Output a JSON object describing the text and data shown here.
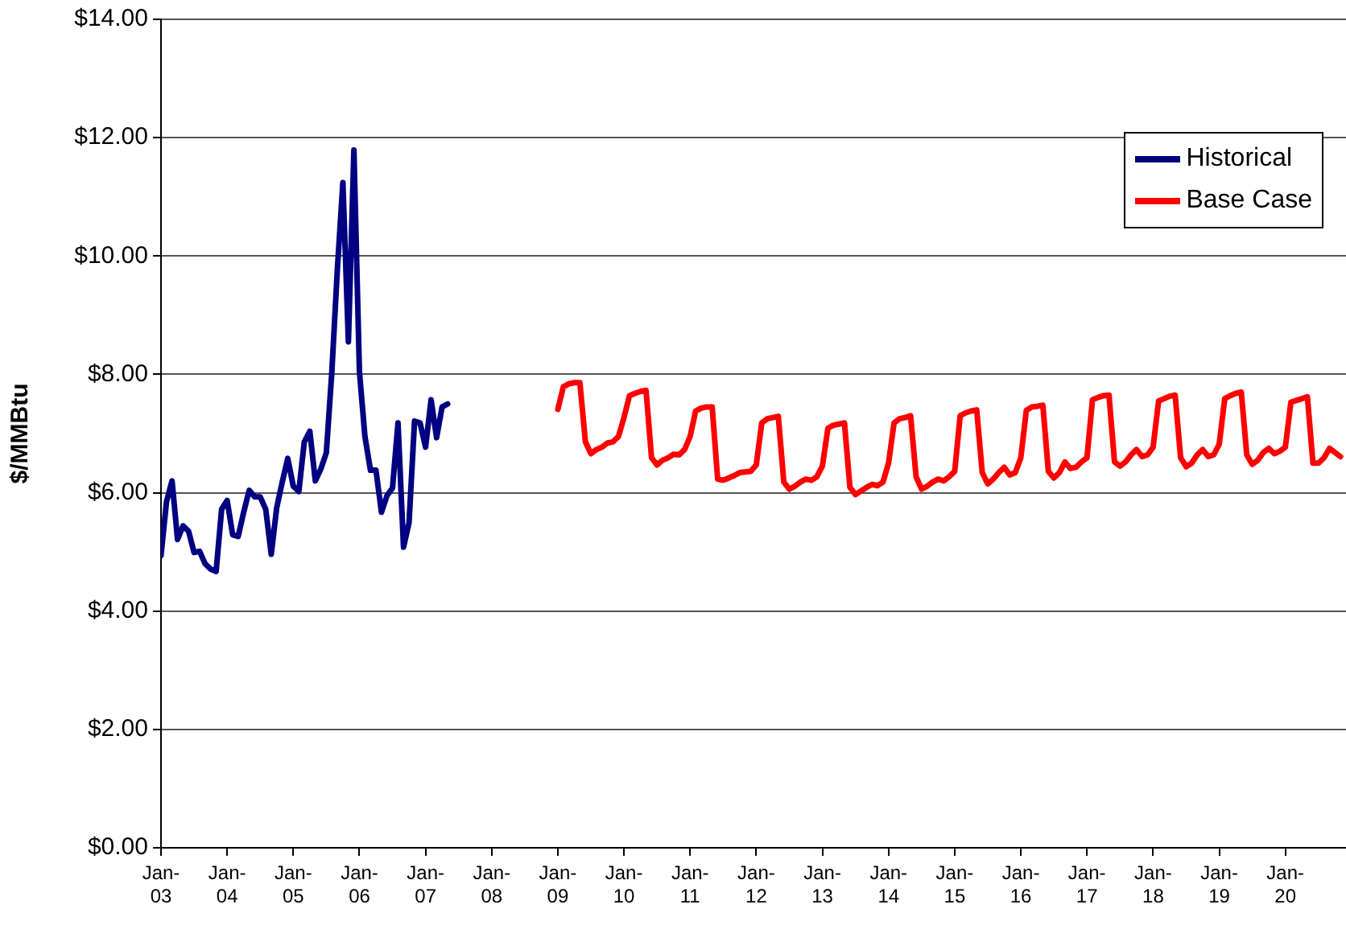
{
  "chart_data": {
    "type": "line",
    "ylabel": "$/MMBtu",
    "xlim": [
      "2003-01",
      "2020-12"
    ],
    "xticks": [
      {
        "value": "2003-01",
        "label": "Jan-03"
      },
      {
        "value": "2004-01",
        "label": "Jan-04"
      },
      {
        "value": "2005-01",
        "label": "Jan-05"
      },
      {
        "value": "2006-01",
        "label": "Jan-06"
      },
      {
        "value": "2007-01",
        "label": "Jan-07"
      },
      {
        "value": "2008-01",
        "label": "Jan-08"
      },
      {
        "value": "2009-01",
        "label": "Jan-09"
      },
      {
        "value": "2010-01",
        "label": "Jan-10"
      },
      {
        "value": "2011-01",
        "label": "Jan-11"
      },
      {
        "value": "2012-01",
        "label": "Jan-12"
      },
      {
        "value": "2013-01",
        "label": "Jan-13"
      },
      {
        "value": "2014-01",
        "label": "Jan-14"
      },
      {
        "value": "2015-01",
        "label": "Jan-15"
      },
      {
        "value": "2016-01",
        "label": "Jan-16"
      },
      {
        "value": "2017-01",
        "label": "Jan-17"
      },
      {
        "value": "2018-01",
        "label": "Jan-18"
      },
      {
        "value": "2019-01",
        "label": "Jan-19"
      },
      {
        "value": "2020-01",
        "label": "Jan-20"
      }
    ],
    "ylim": [
      0,
      14
    ],
    "yticks": [
      {
        "value": 0,
        "label": "$0.00"
      },
      {
        "value": 2,
        "label": "$2.00"
      },
      {
        "value": 4,
        "label": "$4.00"
      },
      {
        "value": 6,
        "label": "$6.00"
      },
      {
        "value": 8,
        "label": "$8.00"
      },
      {
        "value": 10,
        "label": "$10.00"
      },
      {
        "value": 12,
        "label": "$12.00"
      },
      {
        "value": 14,
        "label": "$14.00"
      }
    ],
    "grid": "y",
    "legend": "top right",
    "marker": "none",
    "line_style": "solid",
    "series": [
      {
        "name": "Historical",
        "color": "#000080",
        "x": [
          "2003-01",
          "2003-02",
          "2003-03",
          "2003-04",
          "2003-05",
          "2003-06",
          "2003-07",
          "2003-08",
          "2003-09",
          "2003-10",
          "2003-11",
          "2003-12",
          "2004-01",
          "2004-02",
          "2004-03",
          "2004-04",
          "2004-05",
          "2004-06",
          "2004-07",
          "2004-08",
          "2004-09",
          "2004-10",
          "2004-11",
          "2004-12",
          "2005-01",
          "2005-02",
          "2005-03",
          "2005-04",
          "2005-05",
          "2005-06",
          "2005-07",
          "2005-08",
          "2005-09",
          "2005-10",
          "2005-11",
          "2005-12",
          "2006-01",
          "2006-02",
          "2006-03",
          "2006-04",
          "2006-05",
          "2006-06",
          "2006-07",
          "2006-08",
          "2006-09",
          "2006-10",
          "2006-11",
          "2006-12",
          "2007-01",
          "2007-02",
          "2007-03",
          "2007-04",
          "2007-05"
        ],
        "values": [
          4.94,
          5.85,
          6.2,
          5.21,
          5.44,
          5.35,
          4.99,
          5.01,
          4.8,
          4.71,
          4.67,
          5.72,
          5.87,
          5.29,
          5.26,
          5.67,
          6.04,
          5.93,
          5.93,
          5.72,
          4.96,
          5.75,
          6.18,
          6.58,
          6.11,
          6.02,
          6.86,
          7.04,
          6.2,
          6.4,
          6.68,
          8.05,
          9.78,
          11.24,
          8.55,
          11.79,
          8.05,
          6.95,
          6.38,
          6.38,
          5.67,
          5.95,
          6.08,
          7.18,
          5.08,
          5.49,
          7.21,
          7.18,
          6.77,
          7.57,
          6.93,
          7.45,
          7.5
        ]
      },
      {
        "name": "Base Case",
        "color": "#ff0000",
        "x": [
          "2009-01",
          "2009-02",
          "2009-03",
          "2009-04",
          "2009-05",
          "2009-06",
          "2009-07",
          "2009-08",
          "2009-09",
          "2009-10",
          "2009-11",
          "2009-12",
          "2010-01",
          "2010-02",
          "2010-03",
          "2010-04",
          "2010-05",
          "2010-06",
          "2010-07",
          "2010-08",
          "2010-09",
          "2010-10",
          "2010-11",
          "2010-12",
          "2011-01",
          "2011-02",
          "2011-03",
          "2011-04",
          "2011-05",
          "2011-06",
          "2011-07",
          "2011-08",
          "2011-09",
          "2011-10",
          "2011-11",
          "2011-12",
          "2012-01",
          "2012-02",
          "2012-03",
          "2012-04",
          "2012-05",
          "2012-06",
          "2012-07",
          "2012-08",
          "2012-09",
          "2012-10",
          "2012-11",
          "2012-12",
          "2013-01",
          "2013-02",
          "2013-03",
          "2013-04",
          "2013-05",
          "2013-06",
          "2013-07",
          "2013-08",
          "2013-09",
          "2013-10",
          "2013-11",
          "2013-12",
          "2014-01",
          "2014-02",
          "2014-03",
          "2014-04",
          "2014-05",
          "2014-06",
          "2014-07",
          "2014-08",
          "2014-09",
          "2014-10",
          "2014-11",
          "2014-12",
          "2015-01",
          "2015-02",
          "2015-03",
          "2015-04",
          "2015-05",
          "2015-06",
          "2015-07",
          "2015-08",
          "2015-09",
          "2015-10",
          "2015-11",
          "2015-12",
          "2016-01",
          "2016-02",
          "2016-03",
          "2016-04",
          "2016-05",
          "2016-06",
          "2016-07",
          "2016-08",
          "2016-09",
          "2016-10",
          "2016-11",
          "2016-12",
          "2017-01",
          "2017-02",
          "2017-03",
          "2017-04",
          "2017-05",
          "2017-06",
          "2017-07",
          "2017-08",
          "2017-09",
          "2017-10",
          "2017-11",
          "2017-12",
          "2018-01",
          "2018-02",
          "2018-03",
          "2018-04",
          "2018-05",
          "2018-06",
          "2018-07",
          "2018-08",
          "2018-09",
          "2018-10",
          "2018-11",
          "2018-12",
          "2019-01",
          "2019-02",
          "2019-03",
          "2019-04",
          "2019-05",
          "2019-06",
          "2019-07",
          "2019-08",
          "2019-09",
          "2019-10",
          "2019-11",
          "2019-12",
          "2020-01",
          "2020-02",
          "2020-03",
          "2020-04",
          "2020-05",
          "2020-06",
          "2020-07",
          "2020-08",
          "2020-09",
          "2020-10",
          "2020-11"
        ],
        "values": [
          7.41,
          7.79,
          7.84,
          7.86,
          7.86,
          6.86,
          6.66,
          6.73,
          6.77,
          6.84,
          6.86,
          6.95,
          7.27,
          7.64,
          7.68,
          7.71,
          7.73,
          6.59,
          6.47,
          6.55,
          6.59,
          6.65,
          6.64,
          6.73,
          6.95,
          7.38,
          7.43,
          7.45,
          7.45,
          6.23,
          6.21,
          6.25,
          6.29,
          6.34,
          6.35,
          6.36,
          6.47,
          7.18,
          7.25,
          7.27,
          7.29,
          6.18,
          6.06,
          6.11,
          6.18,
          6.23,
          6.21,
          6.27,
          6.45,
          7.09,
          7.14,
          7.16,
          7.18,
          6.09,
          5.97,
          6.03,
          6.09,
          6.14,
          6.12,
          6.18,
          6.5,
          7.18,
          7.25,
          7.27,
          7.3,
          6.27,
          6.06,
          6.11,
          6.18,
          6.23,
          6.2,
          6.27,
          6.36,
          7.3,
          7.35,
          7.38,
          7.4,
          6.34,
          6.15,
          6.23,
          6.34,
          6.43,
          6.3,
          6.34,
          6.59,
          7.39,
          7.45,
          7.46,
          7.48,
          6.36,
          6.25,
          6.34,
          6.52,
          6.41,
          6.43,
          6.52,
          6.59,
          7.57,
          7.61,
          7.64,
          7.65,
          6.52,
          6.45,
          6.52,
          6.64,
          6.73,
          6.61,
          6.64,
          6.77,
          7.55,
          7.59,
          7.63,
          7.65,
          6.59,
          6.44,
          6.5,
          6.64,
          6.73,
          6.61,
          6.64,
          6.82,
          7.59,
          7.64,
          7.68,
          7.7,
          6.64,
          6.48,
          6.55,
          6.68,
          6.75,
          6.66,
          6.7,
          6.77,
          7.53,
          7.56,
          7.59,
          7.62,
          6.5,
          6.5,
          6.59,
          6.75,
          6.68,
          6.61
        ]
      }
    ]
  }
}
